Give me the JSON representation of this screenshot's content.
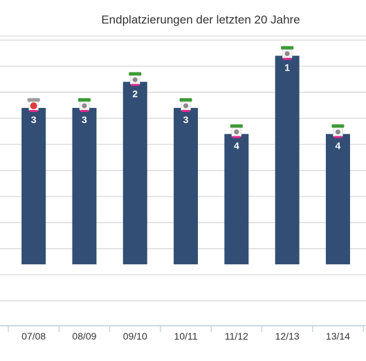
{
  "chart_data": {
    "type": "bar",
    "title": "Endplatzierungen der letzten 20 Jahre",
    "xlabel": "",
    "ylabel": "",
    "categories": [
      "07/08",
      "08/09",
      "09/10",
      "10/11",
      "11/12",
      "12/13",
      "13/14"
    ],
    "values": [
      3,
      3,
      2,
      3,
      4,
      1,
      4
    ],
    "data_labels": [
      "3",
      "3",
      "2",
      "3",
      "4",
      "1",
      "4"
    ],
    "y_axis": {
      "reversed": true,
      "visible_range": [
        0.4,
        10.5
      ]
    },
    "grid": true,
    "legend": "none",
    "colors": {
      "bar": "#324e75",
      "grid": "#d5d5d5",
      "axis": "#b7cee3",
      "title": "#333333",
      "badge_green": "#3c9a35",
      "badge_gray": "#9a9a9a",
      "badge_pink": "#e0288e"
    },
    "markers": [
      "gray-badge",
      "green-badge",
      "green-badge",
      "green-badge",
      "green-badge",
      "green-badge",
      "green-badge"
    ]
  }
}
